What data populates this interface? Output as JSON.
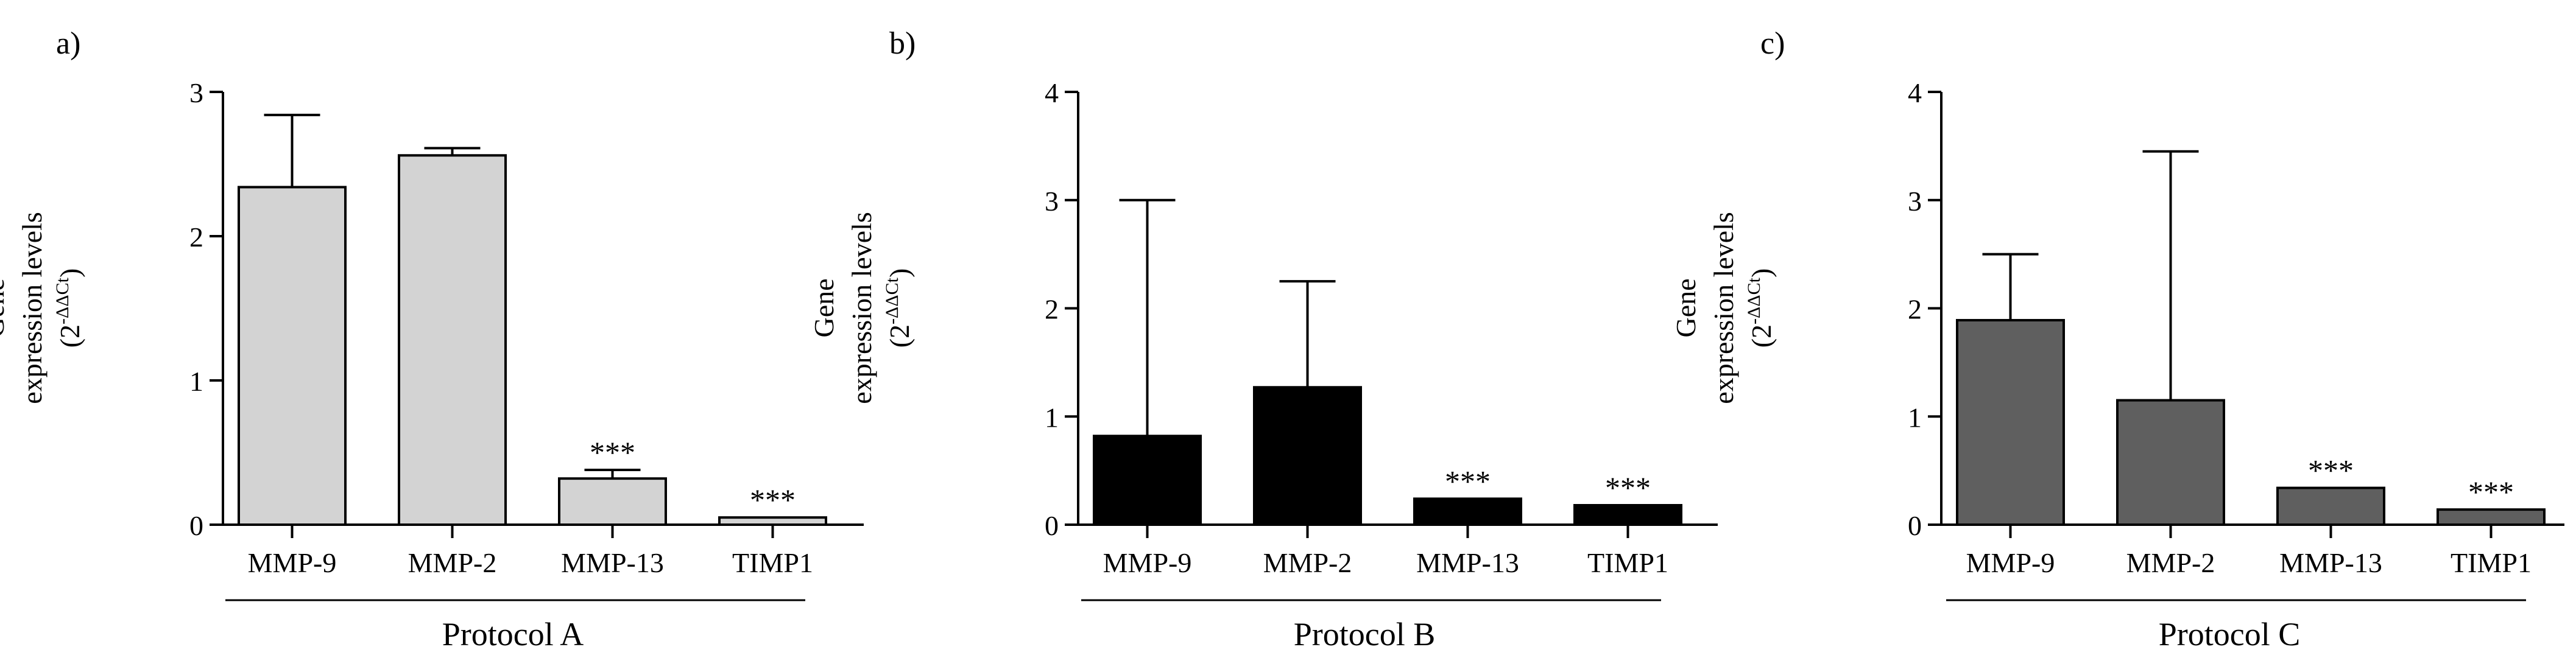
{
  "chart_data": [
    {
      "type": "bar",
      "panel_label": "a)",
      "group_label": "Protocol A",
      "ylabel_lines": [
        "Gene",
        "expression levels",
        "(2",
        "-ΔΔCt",
        ")"
      ],
      "categories": [
        "MMP-9",
        "MMP-2",
        "MMP-13",
        "TIMP1"
      ],
      "values": [
        2.34,
        2.56,
        0.32,
        0.05
      ],
      "errors": [
        0.5,
        0.05,
        0.06,
        0.0
      ],
      "significance": [
        "",
        "",
        "***",
        "***"
      ],
      "ylim": [
        0,
        3
      ],
      "yticks": [
        "0",
        "1",
        "2",
        "3"
      ],
      "bar_color": "#d3d3d3"
    },
    {
      "type": "bar",
      "panel_label": "b)",
      "group_label": "Protocol B",
      "ylabel_lines": [
        "Gene",
        "expression levels",
        "(2",
        "-ΔΔCt",
        ")"
      ],
      "categories": [
        "MMP-9",
        "MMP-2",
        "MMP-13",
        "TIMP1"
      ],
      "values": [
        0.82,
        1.27,
        0.24,
        0.18
      ],
      "errors": [
        2.18,
        0.98,
        0.0,
        0.0
      ],
      "significance": [
        "",
        "",
        "***",
        "***"
      ],
      "ylim": [
        0,
        4
      ],
      "yticks": [
        "0",
        "1",
        "2",
        "3",
        "4"
      ],
      "bar_color": "#000000"
    },
    {
      "type": "bar",
      "panel_label": "c)",
      "group_label": "Protocol C",
      "ylabel_lines": [
        "Gene",
        "expression levels",
        "(2",
        "-ΔΔCt",
        ")"
      ],
      "categories": [
        "MMP-9",
        "MMP-2",
        "MMP-13",
        "TIMP1"
      ],
      "values": [
        1.89,
        1.15,
        0.34,
        0.14
      ],
      "errors": [
        0.61,
        2.3,
        0.0,
        0.0
      ],
      "significance": [
        "",
        "",
        "***",
        "***"
      ],
      "ylim": [
        0,
        4
      ],
      "yticks": [
        "0",
        "1",
        "2",
        "3",
        "4"
      ],
      "bar_color": "#5f5f5f"
    }
  ]
}
